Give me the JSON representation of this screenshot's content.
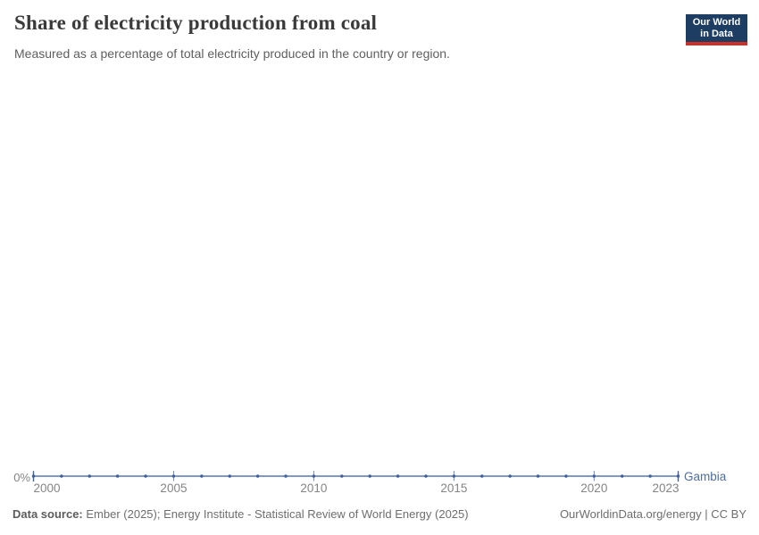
{
  "header": {
    "title": "Share of electricity production from coal",
    "subtitle": "Measured as a percentage of total electricity produced in the country or region.",
    "logo": {
      "line1": "Our World",
      "line2": "in Data"
    }
  },
  "chart_data": {
    "type": "line",
    "title": "Share of electricity production from coal",
    "x_range": [
      2000,
      2023
    ],
    "x": [
      2000,
      2001,
      2002,
      2003,
      2004,
      2005,
      2006,
      2007,
      2008,
      2009,
      2010,
      2011,
      2012,
      2013,
      2014,
      2015,
      2016,
      2017,
      2018,
      2019,
      2020,
      2021,
      2022,
      2023
    ],
    "series": [
      {
        "name": "Gambia",
        "color": "#5577b1",
        "values": [
          0,
          0,
          0,
          0,
          0,
          0,
          0,
          0,
          0,
          0,
          0,
          0,
          0,
          0,
          0,
          0,
          0,
          0,
          0,
          0,
          0,
          0,
          0,
          0
        ]
      }
    ],
    "x_ticks": [
      2000,
      2005,
      2010,
      2015,
      2020,
      2023
    ],
    "y_ticks": [
      {
        "value": 0,
        "label": "0%"
      }
    ],
    "unit": "%",
    "grid": false,
    "legend": "end-of-line-label"
  },
  "colors": {
    "line": "#5577b1",
    "dot": "#3e5e9c",
    "tick": "#6f8cbd",
    "entity_label": "#4c6da6",
    "logo_bg": "#1d3d63",
    "logo_red": "#cf2d27"
  },
  "footer": {
    "source_label": "Data source:",
    "source_text": "Ember (2025); Energy Institute - Statistical Review of World Energy (2025)",
    "right_text": "OurWorldinData.org/energy | CC BY"
  }
}
